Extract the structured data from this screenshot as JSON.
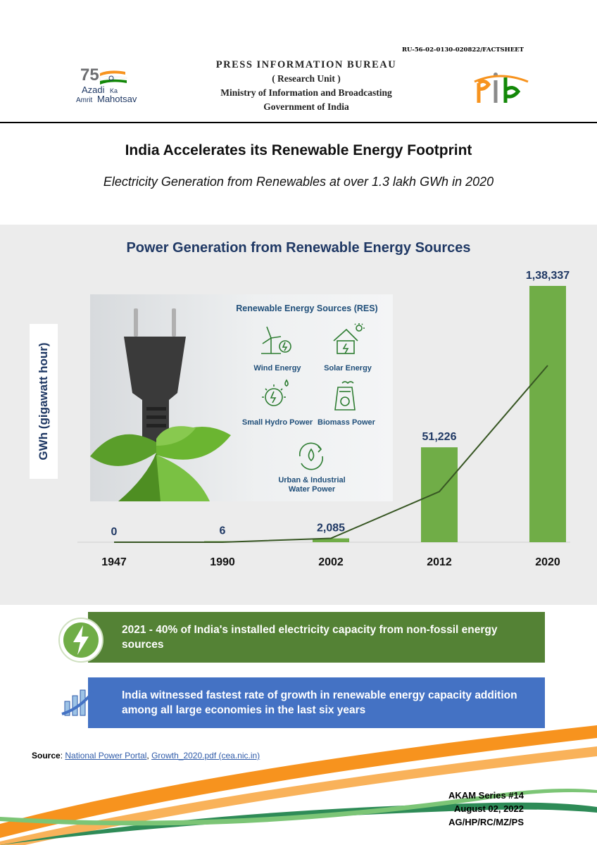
{
  "header": {
    "ref_code": "RU-56-02-0130-020822/FACTSHEET",
    "org_lines": [
      "PRESS INFORMATION BUREAU",
      "( Research Unit )",
      "Ministry of Information and Broadcasting",
      "Government of India"
    ],
    "left_logo_text": [
      "Azadi",
      "Ka",
      "Amrit",
      "Mahotsav"
    ],
    "left_logo_number": "75",
    "colors": {
      "saffron": "#f7931e",
      "green": "#138808",
      "navy": "#1f3864"
    }
  },
  "title": "India Accelerates its Renewable Energy Footprint",
  "subtitle": "Electricity Generation from Renewables at over 1.3 lakh GWh in 2020",
  "chart_data": {
    "type": "bar",
    "title": "Power Generation from Renewable Energy Sources",
    "ylabel": "GWh (gigawatt hour)",
    "xlabel": "",
    "categories": [
      "1947",
      "1990",
      "2002",
      "2012",
      "2020"
    ],
    "values": [
      0,
      6,
      2085,
      51226,
      138337
    ],
    "value_labels": [
      "0",
      "6",
      "2,085",
      "51,226",
      "1,38,337"
    ],
    "ylim": [
      0,
      138337
    ],
    "trend_line": true,
    "bar_color": "#70ad47",
    "line_color": "#375623"
  },
  "res_panel": {
    "title": "Renewable Energy Sources (RES)",
    "items": [
      {
        "label": "Wind Energy",
        "icon": "wind-turbine-icon"
      },
      {
        "label": "Solar Energy",
        "icon": "solar-house-icon"
      },
      {
        "label": "Small Hydro Power",
        "icon": "hydro-bulb-icon"
      },
      {
        "label": "Biomass Power",
        "icon": "biomass-plant-icon"
      },
      {
        "label": "Urban & Industrial Water Power",
        "icon": "water-cycle-icon"
      }
    ]
  },
  "facts": [
    {
      "text": "2021 - 40% of India's installed electricity capacity from non-fossil energy sources",
      "icon": "lightning-bolt-icon",
      "color": "#548235"
    },
    {
      "text": "India witnessed fastest rate of growth in renewable energy capacity addition among all large economies in the last six years",
      "icon": "growth-chart-icon",
      "color": "#4472c4"
    }
  ],
  "source": {
    "label": "Source",
    "link1": "National Power Portal",
    "separator": ", ",
    "link2": "Growth_2020.pdf (cea.nic.in)"
  },
  "footer": {
    "series": "AKAM Series #14",
    "date": "August 02, 2022",
    "initials": "AG/HP/RC/MZ/PS"
  }
}
